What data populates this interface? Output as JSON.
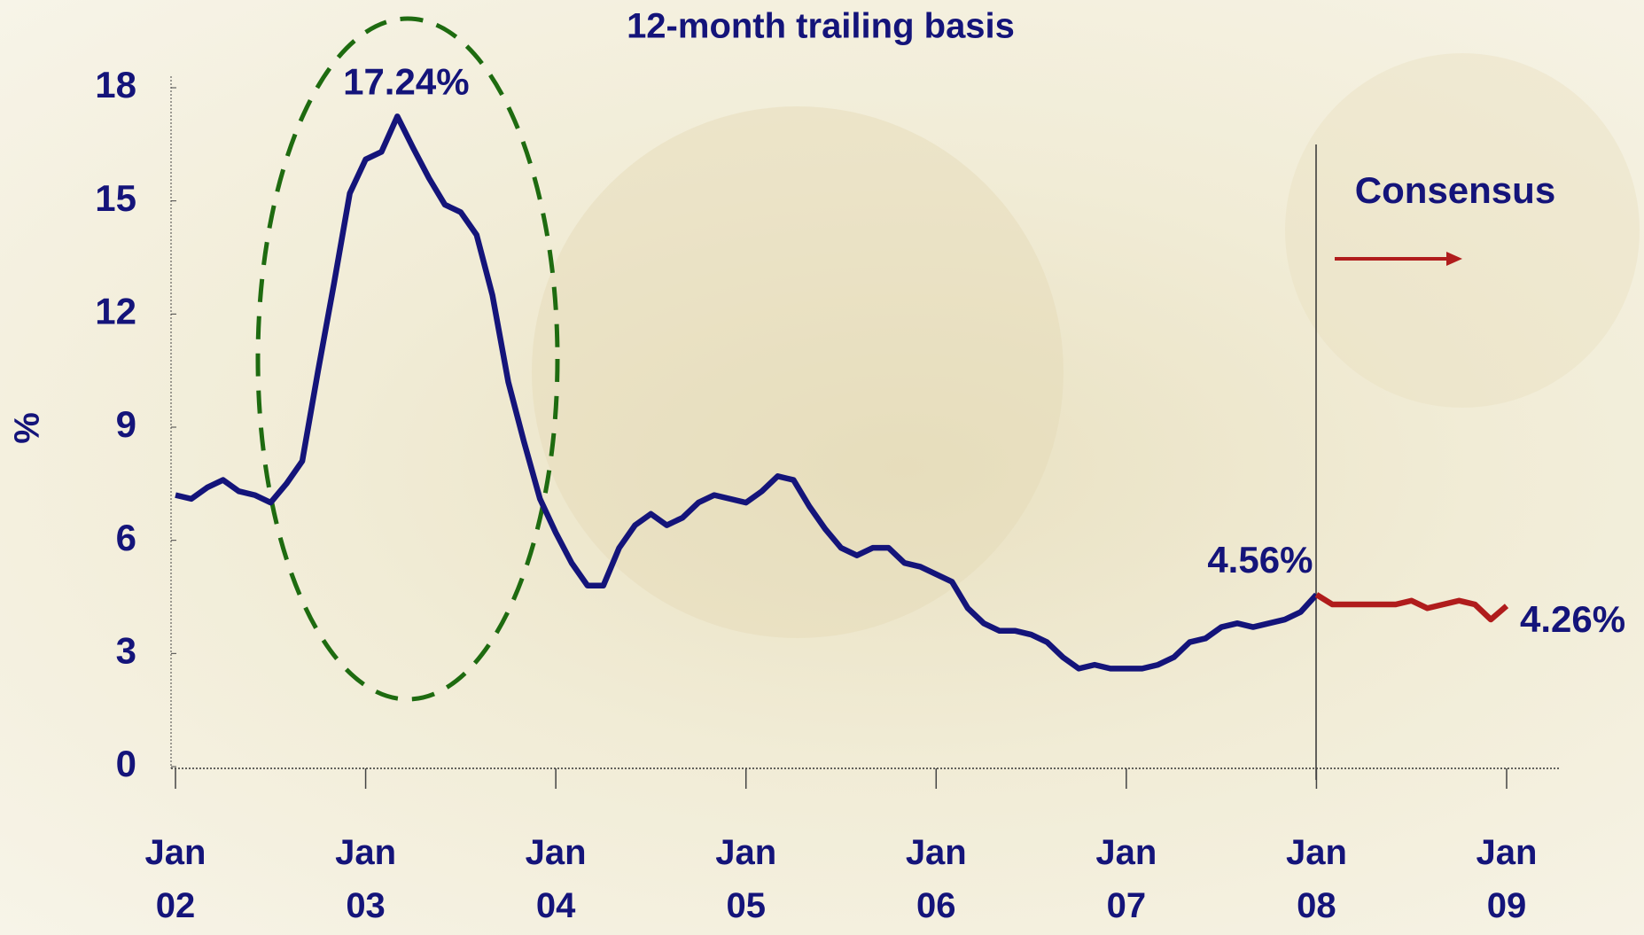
{
  "chart_data": {
    "type": "line",
    "title": "12-month trailing basis",
    "y_label": "%",
    "categories": [
      "Jan 02",
      null,
      null,
      null,
      null,
      null,
      null,
      null,
      null,
      null,
      null,
      null,
      "Jan 03",
      null,
      null,
      null,
      null,
      null,
      null,
      null,
      null,
      null,
      null,
      null,
      "Jan 04",
      null,
      null,
      null,
      null,
      null,
      null,
      null,
      null,
      null,
      null,
      null,
      "Jan 05",
      null,
      null,
      null,
      null,
      null,
      null,
      null,
      null,
      null,
      null,
      null,
      "Jan 06",
      null,
      null,
      null,
      null,
      null,
      null,
      null,
      null,
      null,
      null,
      null,
      "Jan 07",
      null,
      null,
      null,
      null,
      null,
      null,
      null,
      null,
      null,
      null,
      null,
      "Jan 08",
      null,
      null,
      null,
      null,
      null,
      null,
      null,
      null,
      null,
      null,
      null,
      "Jan 09"
    ],
    "series": [
      {
        "color": "#14147a",
        "values": [
          7.2,
          7.1,
          7.4,
          7.6,
          7.3,
          7.2,
          7.0,
          7.5,
          8.1,
          10.5,
          12.8,
          15.2,
          16.1,
          16.3,
          17.24,
          16.4,
          15.6,
          14.9,
          14.7,
          14.1,
          12.5,
          10.2,
          8.6,
          7.1,
          6.2,
          5.4,
          4.8,
          4.8,
          5.8,
          6.4,
          6.7,
          6.4,
          6.6,
          7.0,
          7.2,
          7.1,
          7.0,
          7.3,
          7.7,
          7.6,
          6.9,
          6.3,
          5.8,
          5.6,
          5.8,
          5.8,
          5.4,
          5.3,
          5.1,
          4.9,
          4.2,
          3.8,
          3.6,
          3.6,
          3.5,
          3.3,
          2.9,
          2.6,
          2.7,
          2.6,
          2.6,
          2.6,
          2.7,
          2.9,
          3.3,
          3.4,
          3.7,
          3.8,
          3.7,
          3.8,
          3.9,
          4.1,
          4.56,
          null,
          null,
          null,
          null,
          null,
          null,
          null,
          null,
          null,
          null,
          null,
          null
        ],
        "value_labels": [
          null,
          null,
          null,
          null,
          null,
          null,
          null,
          null,
          null,
          null,
          null,
          null,
          null,
          null,
          "17.24%",
          null,
          null,
          null,
          null,
          null,
          null,
          null,
          null,
          null,
          null,
          null,
          null,
          null,
          null,
          null,
          null,
          null,
          null,
          null,
          null,
          null,
          null,
          null,
          null,
          null,
          null,
          null,
          null,
          null,
          null,
          null,
          null,
          null,
          null,
          null,
          null,
          null,
          null,
          null,
          null,
          null,
          null,
          null,
          null,
          null,
          null,
          null,
          null,
          null,
          null,
          null,
          null,
          null,
          null,
          null,
          null,
          null,
          "4.56%",
          null,
          null,
          null,
          null,
          null,
          null,
          null,
          null,
          null,
          null,
          null,
          null
        ]
      },
      {
        "name": "Consensus",
        "color": "#b01c1c",
        "values": [
          null,
          null,
          null,
          null,
          null,
          null,
          null,
          null,
          null,
          null,
          null,
          null,
          null,
          null,
          null,
          null,
          null,
          null,
          null,
          null,
          null,
          null,
          null,
          null,
          null,
          null,
          null,
          null,
          null,
          null,
          null,
          null,
          null,
          null,
          null,
          null,
          null,
          null,
          null,
          null,
          null,
          null,
          null,
          null,
          null,
          null,
          null,
          null,
          null,
          null,
          null,
          null,
          null,
          null,
          null,
          null,
          null,
          null,
          null,
          null,
          null,
          null,
          null,
          null,
          null,
          null,
          null,
          null,
          null,
          null,
          null,
          null,
          4.56,
          4.3,
          4.3,
          4.3,
          4.3,
          4.3,
          4.4,
          4.2,
          4.3,
          4.4,
          4.3,
          3.9,
          4.26
        ],
        "value_labels": [
          null,
          null,
          null,
          null,
          null,
          null,
          null,
          null,
          null,
          null,
          null,
          null,
          null,
          null,
          null,
          null,
          null,
          null,
          null,
          null,
          null,
          null,
          null,
          null,
          null,
          null,
          null,
          null,
          null,
          null,
          null,
          null,
          null,
          null,
          null,
          null,
          null,
          null,
          null,
          null,
          null,
          null,
          null,
          null,
          null,
          null,
          null,
          null,
          null,
          null,
          null,
          null,
          null,
          null,
          null,
          null,
          null,
          null,
          null,
          null,
          null,
          null,
          null,
          null,
          null,
          null,
          null,
          null,
          null,
          null,
          null,
          null,
          null,
          null,
          null,
          null,
          null,
          null,
          null,
          null,
          null,
          null,
          null,
          null,
          "4.26%"
        ]
      }
    ],
    "ylim": [
      0,
      18
    ],
    "yticks": [
      0,
      3,
      6,
      9,
      12,
      15,
      18
    ],
    "grid": false
  }
}
